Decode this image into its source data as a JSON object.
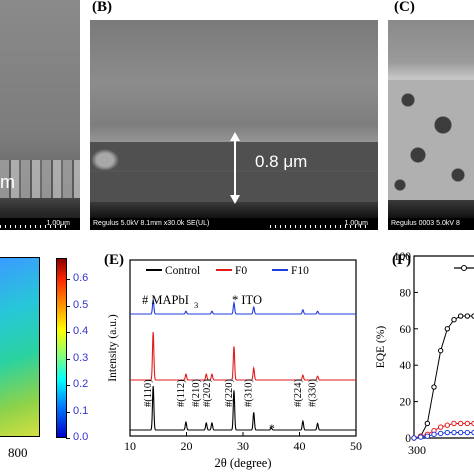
{
  "panels": {
    "A": {
      "text_fragment": "m",
      "scale_label": "1.00μm"
    },
    "B": {
      "label": "(B)",
      "thickness": "0.8 μm",
      "info": "Regulus 5.0kV 8.1mm x30.0k SE(UL)",
      "scale_label": "1.00μm"
    },
    "C": {
      "label": "(C)",
      "info": "Regulus 0003 5.0kV 8"
    },
    "D": {
      "colorbar_ticks": [
        "0.6",
        "0.5",
        "0.4",
        "0.3",
        "0.2",
        "0.1",
        "0.0"
      ],
      "colorbar_range": [
        0.0,
        0.68
      ],
      "x_tick": "800"
    },
    "E": {
      "label": "(E)"
    },
    "F": {
      "label": "(F)"
    }
  },
  "chart_data": [
    {
      "panel": "E",
      "type": "line",
      "xlabel": "2θ (degree)",
      "ylabel": "Intensity (a.u.)",
      "xlim": [
        10,
        50
      ],
      "x_ticks": [
        10,
        20,
        30,
        40,
        50
      ],
      "legend": "top",
      "series": [
        {
          "name": "Control",
          "color": "#000000",
          "offset": 0,
          "peaks": [
            [
              14.1,
              1.0
            ],
            [
              19.9,
              0.18
            ],
            [
              23.5,
              0.16
            ],
            [
              24.5,
              0.16
            ],
            [
              28.4,
              0.9
            ],
            [
              31.9,
              0.4
            ],
            [
              35.0,
              0.05
            ],
            [
              40.6,
              0.2
            ],
            [
              43.2,
              0.15
            ]
          ]
        },
        {
          "name": "F0",
          "color": "#e31a1c",
          "offset": 1,
          "peaks": [
            [
              14.1,
              1.0
            ],
            [
              19.9,
              0.12
            ],
            [
              23.5,
              0.12
            ],
            [
              24.5,
              0.12
            ],
            [
              28.4,
              0.7
            ],
            [
              31.9,
              0.25
            ],
            [
              40.6,
              0.1
            ],
            [
              43.2,
              0.08
            ]
          ]
        },
        {
          "name": "F10",
          "color": "#1f3cdd",
          "offset": 2,
          "peaks": [
            [
              14.1,
              1.0
            ],
            [
              19.9,
              0.2
            ],
            [
              24.5,
              0.2
            ],
            [
              28.4,
              0.8
            ],
            [
              31.9,
              0.5
            ],
            [
              40.6,
              0.3
            ],
            [
              43.2,
              0.2
            ]
          ]
        }
      ],
      "annotations": {
        "mapbi3": "# MAPbI",
        "mapbi3_sub": "3",
        "ito": "*  ITO",
        "ito_marker": "*",
        "planes": [
          "#(110)",
          "#(112)",
          "#(210)",
          "#(202)",
          "#(220)",
          "#(310)",
          "#(224)",
          "#(330)"
        ]
      }
    },
    {
      "panel": "F",
      "type": "line",
      "ylabel": "EQE (%)",
      "xlim": [
        300,
        345
      ],
      "ylim": [
        0,
        100
      ],
      "x_ticks": [
        300
      ],
      "y_ticks": [
        0,
        20,
        40,
        60,
        80,
        100
      ],
      "series": [
        {
          "color": "#000000",
          "x": [
            300,
            305,
            310,
            315,
            320,
            325,
            330,
            335,
            340,
            345
          ],
          "y": [
            0,
            1,
            8,
            28,
            48,
            60,
            65,
            67,
            67,
            67
          ]
        },
        {
          "color": "#e31a1c",
          "x": [
            300,
            305,
            310,
            315,
            320,
            325,
            330,
            335,
            340,
            345
          ],
          "y": [
            0,
            1,
            2,
            4,
            6,
            7,
            8,
            8,
            8,
            8
          ]
        },
        {
          "color": "#1f3cdd",
          "x": [
            300,
            305,
            310,
            315,
            320,
            325,
            330,
            335,
            340,
            345
          ],
          "y": [
            0,
            0.5,
            1,
            2,
            2.5,
            3,
            3,
            3,
            3,
            3
          ]
        }
      ]
    }
  ]
}
